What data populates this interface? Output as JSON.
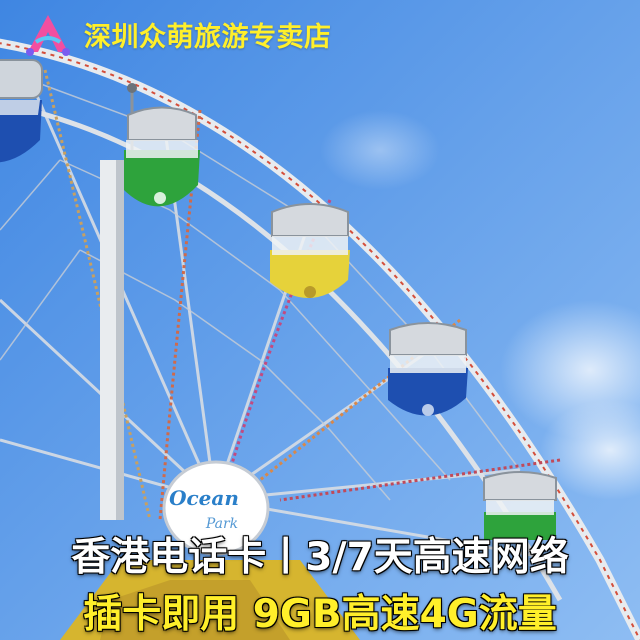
{
  "brand": {
    "store_name": "深圳众萌旅游专卖店",
    "logo_icon": "letter-a-logo-icon"
  },
  "promo": {
    "line1": "香港电话卡丨3/7天高速网络",
    "line2": "插卡即用 9GB高速4G流量"
  },
  "sign": {
    "text_top": "Ocean",
    "text_bottom": "Park"
  },
  "colors": {
    "sky_top": "#4f90e6",
    "sky_bottom": "#86b9f2",
    "headline_yellow": "#ffef2a",
    "cabin_blue": "#1e4fb0",
    "cabin_green": "#2ea33c",
    "cabin_yellow": "#e6d23a"
  }
}
